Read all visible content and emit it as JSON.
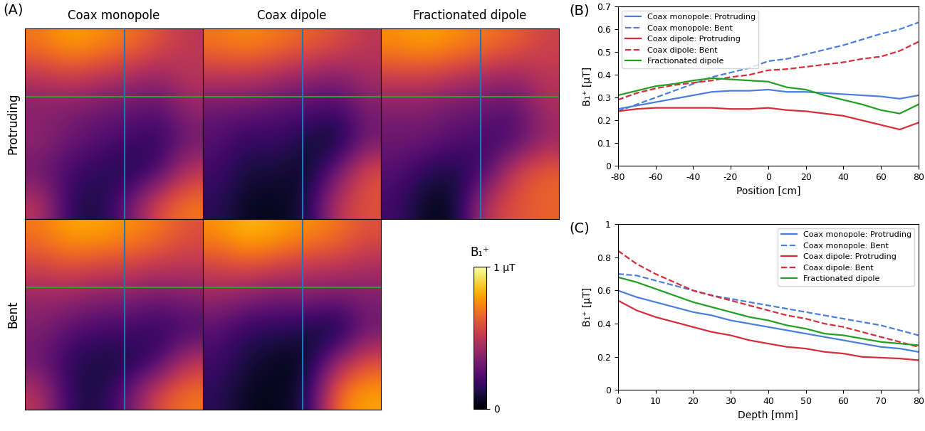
{
  "chart_data": [
    {
      "type": "heatmap",
      "label": "(A)",
      "columns": [
        "Coax monopole",
        "Coax dipole",
        "Fractionated dipole"
      ],
      "rows": [
        "Protruding",
        "Bent"
      ],
      "maps": [
        {
          "column": 0,
          "row": 0,
          "cells": [
            [
              0.7,
              0.8,
              0.75,
              0.7,
              0.6,
              0.5
            ],
            [
              0.5,
              0.55,
              0.5,
              0.45,
              0.4,
              0.5
            ],
            [
              0.35,
              0.35,
              0.3,
              0.3,
              0.25,
              0.4
            ],
            [
              0.4,
              0.3,
              0.25,
              0.2,
              0.15,
              0.3
            ],
            [
              0.3,
              0.2,
              0.15,
              0.1,
              0.2,
              0.5
            ],
            [
              0.5,
              0.15,
              0.1,
              0.3,
              0.6,
              0.7
            ]
          ]
        },
        {
          "column": 1,
          "row": 0,
          "cells": [
            [
              0.7,
              0.75,
              0.7,
              0.65,
              0.6,
              0.5
            ],
            [
              0.5,
              0.5,
              0.45,
              0.4,
              0.35,
              0.45
            ],
            [
              0.3,
              0.3,
              0.25,
              0.25,
              0.2,
              0.35
            ],
            [
              0.25,
              0.15,
              0.2,
              0.1,
              0.05,
              0.3
            ],
            [
              0.2,
              0.1,
              0.1,
              0.05,
              0.3,
              0.6
            ],
            [
              0.15,
              0.05,
              0.05,
              0.1,
              0.5,
              0.6
            ]
          ]
        },
        {
          "column": 2,
          "row": 0,
          "cells": [
            [
              0.75,
              0.8,
              0.75,
              0.7,
              0.65,
              0.55
            ],
            [
              0.55,
              0.55,
              0.5,
              0.45,
              0.4,
              0.5
            ],
            [
              0.35,
              0.35,
              0.3,
              0.3,
              0.25,
              0.45
            ],
            [
              0.3,
              0.3,
              0.25,
              0.2,
              0.2,
              0.4
            ],
            [
              0.25,
              0.15,
              0.1,
              0.2,
              0.55,
              0.65
            ],
            [
              0.2,
              0.05,
              0.05,
              0.5,
              0.6,
              0.65
            ]
          ]
        },
        {
          "column": 0,
          "row": 1,
          "cells": [
            [
              0.7,
              0.8,
              0.8,
              0.75,
              0.7,
              0.6
            ],
            [
              0.55,
              0.6,
              0.55,
              0.55,
              0.5,
              0.5
            ],
            [
              0.4,
              0.4,
              0.35,
              0.35,
              0.3,
              0.35
            ],
            [
              0.35,
              0.25,
              0.2,
              0.2,
              0.15,
              0.2
            ],
            [
              0.3,
              0.15,
              0.1,
              0.1,
              0.2,
              0.5
            ],
            [
              0.5,
              0.15,
              0.1,
              0.3,
              0.6,
              0.7
            ]
          ]
        },
        {
          "column": 1,
          "row": 1,
          "cells": [
            [
              0.75,
              0.85,
              0.8,
              0.75,
              0.7,
              0.6
            ],
            [
              0.55,
              0.6,
              0.55,
              0.5,
              0.5,
              0.45
            ],
            [
              0.4,
              0.35,
              0.3,
              0.35,
              0.3,
              0.35
            ],
            [
              0.25,
              0.15,
              0.15,
              0.1,
              0.05,
              0.3
            ],
            [
              0.2,
              0.1,
              0.05,
              0.05,
              0.4,
              0.6
            ],
            [
              0.15,
              0.05,
              0.05,
              0.1,
              0.7,
              0.8
            ]
          ]
        }
      ],
      "colorbar": {
        "title": "B₁⁺",
        "range": [
          0,
          1
        ],
        "ticks": [
          {
            "value": 0,
            "label": "0"
          },
          {
            "value": 1,
            "label": "1 μT"
          }
        ]
      }
    },
    {
      "type": "line",
      "label": "(B)",
      "x_label": "Position [cm]",
      "y_label": "B₁⁺ [μT]",
      "x": [
        -80,
        -70,
        -60,
        -50,
        -40,
        -30,
        -20,
        -10,
        0,
        10,
        20,
        30,
        40,
        50,
        60,
        70,
        80
      ],
      "xlim": [
        -80,
        80
      ],
      "xticks": [
        -80,
        -60,
        -40,
        -20,
        0,
        20,
        40,
        60,
        80
      ],
      "ylim": [
        0,
        0.7
      ],
      "yticks": [
        0,
        0.1,
        0.2,
        0.3,
        0.4,
        0.5,
        0.6,
        0.7
      ],
      "legend": "upper left",
      "series": [
        {
          "name": "Coax monopole: Protruding",
          "color": "#4a7fdc",
          "line_style": "solid",
          "values": [
            0.25,
            0.265,
            0.28,
            0.295,
            0.31,
            0.325,
            0.33,
            0.33,
            0.335,
            0.325,
            0.325,
            0.32,
            0.315,
            0.31,
            0.305,
            0.295,
            0.31
          ]
        },
        {
          "name": "Coax monopole: Bent",
          "color": "#4a7fdc",
          "line_style": "dashed",
          "values": [
            0.24,
            0.27,
            0.3,
            0.33,
            0.36,
            0.39,
            0.41,
            0.43,
            0.46,
            0.47,
            0.49,
            0.51,
            0.53,
            0.555,
            0.58,
            0.6,
            0.63
          ]
        },
        {
          "name": "Coax dipole: Protruding",
          "color": "#d62d3b",
          "line_style": "solid",
          "values": [
            0.24,
            0.25,
            0.255,
            0.255,
            0.255,
            0.255,
            0.25,
            0.25,
            0.255,
            0.245,
            0.24,
            0.23,
            0.22,
            0.2,
            0.18,
            0.16,
            0.19
          ]
        },
        {
          "name": "Coax dipole: Bent",
          "color": "#d62d3b",
          "line_style": "dashed",
          "values": [
            0.29,
            0.32,
            0.34,
            0.355,
            0.365,
            0.375,
            0.39,
            0.4,
            0.42,
            0.425,
            0.435,
            0.445,
            0.455,
            0.47,
            0.48,
            0.505,
            0.545
          ]
        },
        {
          "name": "Fractionated dipole",
          "color": "#22a022",
          "line_style": "solid",
          "values": [
            0.31,
            0.33,
            0.35,
            0.36,
            0.375,
            0.385,
            0.38,
            0.375,
            0.37,
            0.345,
            0.335,
            0.31,
            0.29,
            0.27,
            0.245,
            0.23,
            0.27
          ]
        }
      ]
    },
    {
      "type": "line",
      "label": "(C)",
      "x_label": "Depth [mm]",
      "y_label": "B₁⁺ [μT]",
      "x": [
        0,
        5,
        10,
        15,
        20,
        25,
        30,
        35,
        40,
        45,
        50,
        55,
        60,
        65,
        70,
        75,
        80
      ],
      "xlim": [
        0,
        80
      ],
      "xticks": [
        0,
        10,
        20,
        30,
        40,
        50,
        60,
        70,
        80
      ],
      "ylim": [
        0,
        1
      ],
      "yticks": [
        0,
        0.2,
        0.4,
        0.6,
        0.8,
        1
      ],
      "legend": "upper right",
      "series": [
        {
          "name": "Coax monopole: Protruding",
          "color": "#4a7fdc",
          "line_style": "solid",
          "values": [
            0.6,
            0.56,
            0.53,
            0.5,
            0.47,
            0.45,
            0.42,
            0.4,
            0.38,
            0.36,
            0.34,
            0.32,
            0.3,
            0.28,
            0.26,
            0.25,
            0.23
          ]
        },
        {
          "name": "Coax monopole: Bent",
          "color": "#4a7fdc",
          "line_style": "dashed",
          "values": [
            0.7,
            0.69,
            0.66,
            0.63,
            0.6,
            0.57,
            0.55,
            0.53,
            0.51,
            0.49,
            0.47,
            0.45,
            0.43,
            0.41,
            0.39,
            0.36,
            0.33
          ]
        },
        {
          "name": "Coax dipole: Protruding",
          "color": "#d62d3b",
          "line_style": "solid",
          "values": [
            0.54,
            0.48,
            0.44,
            0.41,
            0.38,
            0.35,
            0.33,
            0.3,
            0.28,
            0.26,
            0.25,
            0.23,
            0.22,
            0.2,
            0.195,
            0.19,
            0.18
          ]
        },
        {
          "name": "Coax dipole: Bent",
          "color": "#d62d3b",
          "line_style": "dashed",
          "values": [
            0.84,
            0.76,
            0.7,
            0.65,
            0.6,
            0.57,
            0.54,
            0.51,
            0.48,
            0.45,
            0.43,
            0.4,
            0.38,
            0.35,
            0.32,
            0.29,
            0.26
          ]
        },
        {
          "name": "Fractionated dipole",
          "color": "#22a022",
          "line_style": "solid",
          "values": [
            0.68,
            0.65,
            0.61,
            0.57,
            0.53,
            0.5,
            0.47,
            0.44,
            0.42,
            0.39,
            0.37,
            0.34,
            0.33,
            0.31,
            0.29,
            0.28,
            0.27
          ]
        }
      ]
    }
  ]
}
